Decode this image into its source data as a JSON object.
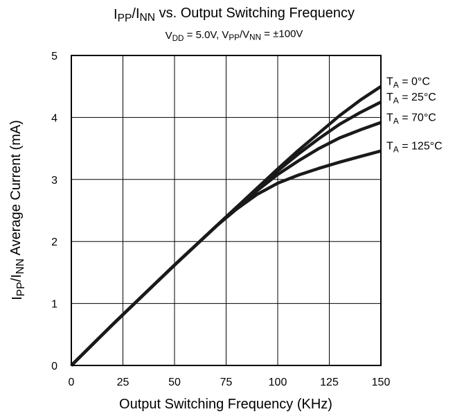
{
  "chart_data": {
    "type": "line",
    "title": "IPP/INN vs. Output Switching Frequency",
    "subtitle": "VDD = 5.0V, VPP/VNN = ±100V",
    "title_parts": [
      {
        "text": "I",
        "sub": false
      },
      {
        "text": "PP",
        "sub": true
      },
      {
        "text": "/I",
        "sub": false
      },
      {
        "text": "NN",
        "sub": true
      },
      {
        "text": " vs. Output Switching Frequency",
        "sub": false
      }
    ],
    "subtitle_parts": [
      {
        "text": "V",
        "sub": false
      },
      {
        "text": "DD",
        "sub": true
      },
      {
        "text": " = 5.0V, V",
        "sub": false
      },
      {
        "text": "PP",
        "sub": true
      },
      {
        "text": "/V",
        "sub": false
      },
      {
        "text": "NN",
        "sub": true
      },
      {
        "text": " =  ±100V",
        "sub": false
      }
    ],
    "xlabel": "Output Switching Frequency (KHz)",
    "ylabel": "IPP/INN Average Current (mA)",
    "ylabel_parts": [
      {
        "text": "I",
        "sub": false
      },
      {
        "text": "PP",
        "sub": true
      },
      {
        "text": "/I",
        "sub": false
      },
      {
        "text": "NN",
        "sub": true
      },
      {
        "text": " Average Current (mA)",
        "sub": false
      }
    ],
    "xlim": [
      0,
      150
    ],
    "ylim": [
      0,
      5
    ],
    "xticks": [
      0,
      25,
      50,
      75,
      100,
      125,
      150
    ],
    "yticks": [
      0,
      1,
      2,
      3,
      4,
      5
    ],
    "grid": true,
    "line_color": "#1a1a1a",
    "x": [
      0,
      10,
      20,
      30,
      40,
      50,
      60,
      70,
      80,
      90,
      100,
      110,
      120,
      130,
      140,
      150
    ],
    "series": [
      {
        "name": "TA = 0°C",
        "label_main": "T",
        "label_sub": "A",
        "label_rest": " = 0°C",
        "values": [
          0,
          0.33,
          0.66,
          0.98,
          1.3,
          1.62,
          1.93,
          2.24,
          2.55,
          2.86,
          3.17,
          3.47,
          3.75,
          4.03,
          4.28,
          4.5
        ]
      },
      {
        "name": "TA = 25°C",
        "label_main": "T",
        "label_sub": "A",
        "label_rest": " = 25°C",
        "values": [
          0,
          0.33,
          0.66,
          0.98,
          1.3,
          1.62,
          1.93,
          2.24,
          2.55,
          2.85,
          3.14,
          3.41,
          3.66,
          3.89,
          4.08,
          4.25
        ]
      },
      {
        "name": "TA = 70°C",
        "label_main": "T",
        "label_sub": "A",
        "label_rest": " = 70°C",
        "values": [
          0,
          0.33,
          0.66,
          0.98,
          1.3,
          1.62,
          1.93,
          2.24,
          2.54,
          2.82,
          3.08,
          3.3,
          3.5,
          3.67,
          3.8,
          3.92
        ]
      },
      {
        "name": "TA = 125°C",
        "label_main": "T",
        "label_sub": "A",
        "label_rest": " = 125°C",
        "values": [
          0,
          0.33,
          0.66,
          0.98,
          1.3,
          1.62,
          1.93,
          2.24,
          2.52,
          2.76,
          2.94,
          3.07,
          3.18,
          3.28,
          3.37,
          3.46
        ]
      }
    ]
  }
}
